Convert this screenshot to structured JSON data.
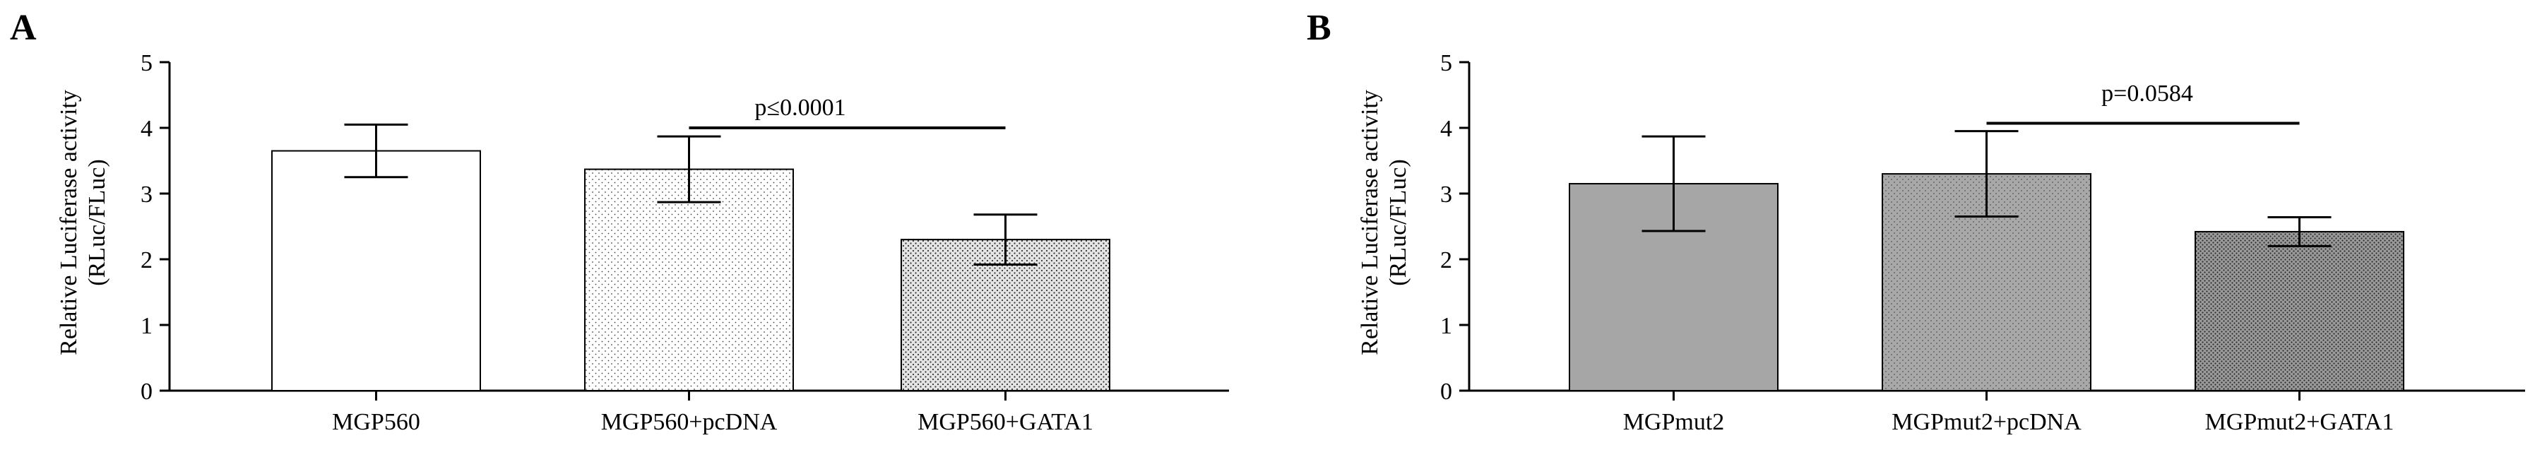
{
  "panels": [
    {
      "letter": "A",
      "chart_data": {
        "type": "bar",
        "categories": [
          "MGP560",
          "MGP560+pcDNA",
          "MGP560+GATA1"
        ],
        "values": [
          3.65,
          3.37,
          2.3
        ],
        "error": [
          0.4,
          0.5,
          0.38
        ],
        "ylabel_line1": "Relative Luciferase activity",
        "ylabel_line2": "(RLuc/FLuc)",
        "ylim": [
          0,
          5
        ],
        "yticks": [
          "0",
          "1",
          "2",
          "3",
          "4",
          "5"
        ],
        "bar_fills": [
          "white",
          "light-dots",
          "dense-dots"
        ],
        "annotation": {
          "text": "p≤0.0001",
          "from": 1,
          "to": 2,
          "y": 4.0
        }
      }
    },
    {
      "letter": "B",
      "chart_data": {
        "type": "bar",
        "categories": [
          "MGPmut2",
          "MGPmut2+pcDNA",
          "MGPmut2+GATA1"
        ],
        "values": [
          3.15,
          3.3,
          2.42
        ],
        "error": [
          0.72,
          0.65,
          0.22
        ],
        "ylabel_line1": "Relative Luciferase activity",
        "ylabel_line2": "(RLuc/FLuc)",
        "ylim": [
          0,
          5
        ],
        "yticks": [
          "0",
          "1",
          "2",
          "3",
          "4",
          "5"
        ],
        "bar_fills": [
          "gray",
          "gray-dots",
          "dark-gray-dots"
        ],
        "annotation": {
          "text": "p=0.0584",
          "from": 1,
          "to": 2,
          "y": 4.07
        }
      }
    }
  ],
  "colors": {
    "gray": "#a6a6a6",
    "dark_gray": "#8f8f8f",
    "axis": "#000000"
  }
}
